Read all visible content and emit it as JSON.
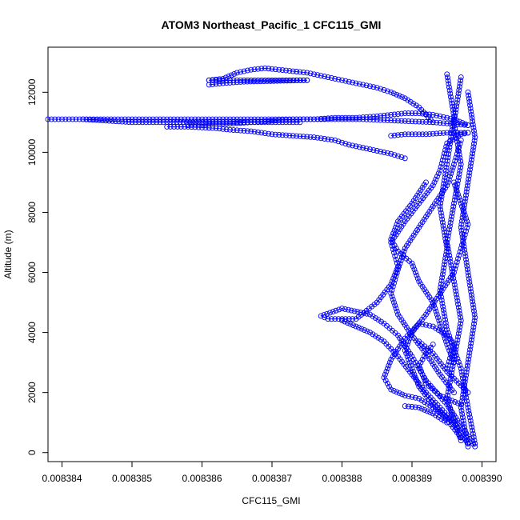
{
  "chart_data": {
    "type": "scatter",
    "title": "ATOM3 Northeast_Pacific_1 CFC115_GMI",
    "xlabel": "CFC115_GMI",
    "ylabel": "Altitude (m)",
    "xlim": [
      0.0083838,
      0.0083902
    ],
    "ylim": [
      -300,
      13500
    ],
    "xticks": [
      0.008384,
      0.008385,
      0.008386,
      0.008387,
      0.008388,
      0.008389,
      0.00839
    ],
    "xtick_labels": [
      "0.008384",
      "0.008385",
      "0.008386",
      "0.008387",
      "0.008388",
      "0.008389",
      "0.008390"
    ],
    "yticks": [
      0,
      2000,
      4000,
      6000,
      8000,
      10000,
      12000
    ],
    "ytick_labels": [
      "0",
      "2000",
      "4000",
      "6000",
      "8000",
      "10000",
      "12000"
    ],
    "marker": "open-circle",
    "connected": true,
    "grid": false,
    "color": "#0000ff",
    "series": [
      {
        "x": [
          0.0083899,
          0.0083897,
          0.0083895,
          0.0083892,
          0.008389,
          0.0083888,
          0.0083886,
          0.0083884,
          0.008388,
          0.0083877,
          0.0083878,
          0.0083882,
          0.0083885,
          0.0083887,
          0.0083888,
          0.0083887,
          0.0083889,
          0.0083891,
          0.0083893,
          0.0083894,
          0.0083895,
          0.0083897,
          0.0083898
        ],
        "y": [
          200,
          900,
          1600,
          2400,
          3200,
          3900,
          4300,
          4600,
          4800,
          4550,
          4450,
          4450,
          5000,
          5600,
          6200,
          7000,
          7700,
          8300,
          8900,
          9400,
          10300,
          10600,
          10650
        ]
      },
      {
        "x": [
          0.0083898,
          0.0083896,
          0.0083893,
          0.0083891,
          0.0083889,
          0.0083887,
          0.0083886,
          0.0083887,
          0.0083889,
          0.0083891,
          0.0083893,
          0.0083895,
          0.0083896,
          0.0083895
        ],
        "y": [
          300,
          1000,
          1500,
          1800,
          1900,
          2100,
          2500,
          3100,
          3800,
          4300,
          4200,
          3900,
          3600,
          2800
        ]
      },
      {
        "x": [
          0.0083897,
          0.0083895,
          0.0083893,
          0.0083891,
          0.008389,
          0.0083889,
          0.008389,
          0.0083892,
          0.0083894,
          0.0083896,
          0.0083897,
          0.0083898,
          0.0083897,
          0.0083896
        ],
        "y": [
          500,
          1100,
          1600,
          2200,
          2800,
          3400,
          4000,
          4600,
          5300,
          6000,
          6800,
          7600,
          8300,
          9000
        ]
      },
      {
        "x": [
          0.0083896,
          0.0083894,
          0.0083892,
          0.008389,
          0.0083888,
          0.0083887,
          0.0083888,
          0.0083889,
          0.0083891,
          0.0083893,
          0.0083895,
          0.0083896,
          0.0083897
        ],
        "y": [
          2000,
          2600,
          3300,
          3900,
          4600,
          5300,
          6100,
          6800,
          7500,
          8200,
          8900,
          9600,
          10400
        ]
      },
      {
        "x": [
          0.0083896,
          0.0083895,
          0.0083894,
          0.0083893,
          0.0083891,
          0.008389,
          0.0083888,
          0.0083887,
          0.0083888,
          0.008389,
          0.0083892
        ],
        "y": [
          3000,
          3600,
          4300,
          5000,
          5700,
          6300,
          6700,
          7100,
          7700,
          8300,
          9000
        ]
      },
      {
        "x": [
          0.0083898,
          0.0083897,
          0.0083898,
          0.0083899,
          0.0083898,
          0.0083897,
          0.0083898,
          0.0083899,
          0.0083898
        ],
        "y": [
          200,
          1500,
          3000,
          4500,
          6000,
          7500,
          9000,
          10500,
          12000
        ]
      },
      {
        "x": [
          0.0083897,
          0.0083895,
          0.0083896,
          0.0083897,
          0.0083896,
          0.0083895,
          0.0083896,
          0.0083897,
          0.0083896,
          0.0083897
        ],
        "y": [
          400,
          1800,
          3100,
          4400,
          5700,
          7000,
          8300,
          9600,
          11000,
          12500
        ]
      },
      {
        "x": [
          0.0083899,
          0.0083898,
          0.0083897,
          0.0083895,
          0.0083894,
          0.0083895,
          0.0083894,
          0.0083895,
          0.0083896,
          0.0083895
        ],
        "y": [
          300,
          1500,
          2800,
          4100,
          5400,
          6800,
          8200,
          9600,
          11200,
          12600
        ]
      },
      {
        "x": [
          0.0083896,
          0.0083894,
          0.0083892,
          0.008389,
          0.0083888,
          0.0083886,
          0.0083884,
          0.0083882,
          0.008388
        ],
        "y": [
          1000,
          1500,
          2000,
          2600,
          3200,
          3700,
          4000,
          4200,
          4400
        ]
      },
      {
        "x": [
          0.0083895,
          0.0083893,
          0.0083891,
          0.0083889
        ],
        "y": [
          1000,
          1300,
          1500,
          1550
        ]
      },
      {
        "x": [
          0.0083898,
          0.0083895,
          0.0083893,
          0.0083891
        ],
        "y": [
          2000,
          2700,
          3300,
          3700
        ]
      },
      {
        "x": [
          0.0083897,
          0.0083894,
          0.0083892,
          0.0083891,
          0.0083892,
          0.0083893
        ],
        "y": [
          1600,
          1900,
          2300,
          2900,
          3300,
          3600
        ]
      },
      {
        "x": [
          0.0083889,
          0.0083887,
          0.0083884,
          0.0083881,
          0.0083879,
          0.0083876,
          0.0083873,
          0.008387,
          0.0083867,
          0.0083864,
          0.0083862,
          0.0083858,
          0.0083855
        ],
        "y": [
          9800,
          9950,
          10100,
          10250,
          10400,
          10500,
          10550,
          10600,
          10700,
          10750,
          10800,
          10850,
          10850
        ]
      },
      {
        "x": [
          0.0083898,
          0.0083896,
          0.0083893,
          0.0083891,
          0.0083889,
          0.0083887,
          0.0083885,
          0.0083882,
          0.0083879,
          0.0083876,
          0.0083873,
          0.008387,
          0.0083867,
          0.0083864,
          0.0083861,
          0.0083858
        ],
        "y": [
          10900,
          11100,
          11250,
          11300,
          11300,
          11250,
          11200,
          11150,
          11150,
          11100,
          11100,
          11050,
          11000,
          10950,
          10950,
          10900
        ]
      },
      {
        "x": [
          0.0083893,
          0.0083891,
          0.0083889,
          0.0083887,
          0.0083885,
          0.0083883,
          0.0083881,
          0.0083879,
          0.0083877,
          0.0083875,
          0.0083873,
          0.0083871,
          0.0083869,
          0.0083867,
          0.0083865,
          0.0083863,
          0.0083861
        ],
        "y": [
          11000,
          11500,
          11800,
          12000,
          12150,
          12250,
          12350,
          12450,
          12550,
          12650,
          12700,
          12750,
          12800,
          12750,
          12650,
          12450,
          12400
        ]
      },
      {
        "x": [
          0.0083861,
          0.0083866,
          0.0083871,
          0.0083875
        ],
        "y": [
          12400,
          12400,
          12400,
          12400
        ]
      },
      {
        "x": [
          0.0083875,
          0.0083866,
          0.0083863,
          0.0083861
        ],
        "y": [
          12400,
          12350,
          12300,
          12250
        ]
      },
      {
        "x": [
          0.0083898,
          0.0083893,
          0.0083888,
          0.0083883,
          0.0083878,
          0.0083873,
          0.0083868,
          0.0083863,
          0.0083858,
          0.0083853,
          0.0083848,
          0.0083843,
          0.0083838
        ],
        "y": [
          10900,
          11000,
          11050,
          11100,
          11100,
          11100,
          11100,
          11100,
          11100,
          11100,
          11100,
          11100,
          11100
        ]
      },
      {
        "x": [
          0.0083843,
          0.008385,
          0.0083855,
          0.0083862,
          0.0083868,
          0.0083874
        ],
        "y": [
          11100,
          11000,
          11000,
          11000,
          11000,
          11000
        ]
      },
      {
        "x": [
          0.0083887,
          0.0083889,
          0.0083892,
          0.0083895,
          0.0083898
        ],
        "y": [
          10550,
          10600,
          10600,
          10650,
          10650
        ]
      }
    ]
  }
}
